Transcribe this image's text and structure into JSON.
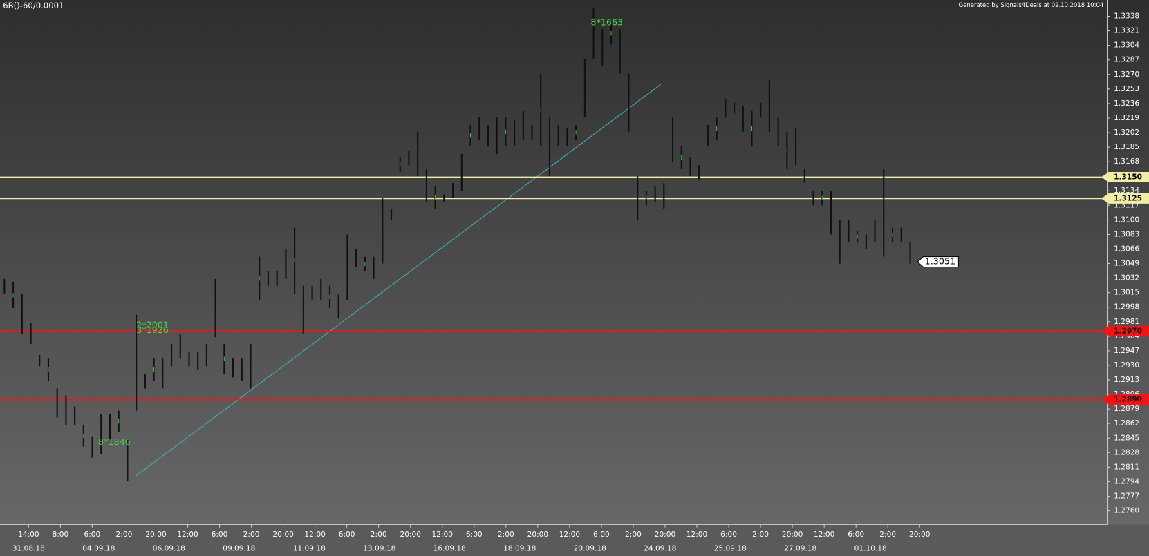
{
  "chart_data": {
    "type": "ohlc",
    "title": "6B()-60/0.0001",
    "subtitle": "Generated by Signals4Deals at 02.10.2018 10:04",
    "ylim": [
      1.2744,
      1.3357
    ],
    "yticks": [
      1.3338,
      1.3321,
      1.3304,
      1.3287,
      {
        "value": 1.327,
        "label": "1.3270"
      },
      1.3253,
      1.3236,
      1.3219,
      1.3202,
      1.3185,
      1.3168,
      1.3134,
      1.3117,
      {
        "value": 1.31,
        "label": "1.3100"
      },
      1.3083,
      1.3066,
      1.3049,
      1.3032,
      1.3015,
      1.2998,
      1.2981,
      1.2964,
      1.2947,
      {
        "value": 1.293,
        "label": "1.2930"
      },
      1.2913,
      1.2896,
      1.2879,
      1.2862,
      1.2845,
      1.2828,
      1.2811,
      1.2794,
      1.2777,
      {
        "value": 1.276,
        "label": "1.2760"
      }
    ],
    "high": [
      1.3031,
      1.3027,
      1.3014,
      1.298,
      1.2942,
      1.2938,
      1.2903,
      1.2895,
      1.2882,
      1.286,
      1.2847,
      1.2873,
      1.2873,
      1.2877,
      1.2843,
      1.2989,
      1.292,
      1.2938,
      1.2938,
      1.2955,
      1.2967,
      1.2946,
      1.2946,
      1.2955,
      1.3031,
      1.2955,
      1.2938,
      1.2938,
      1.2955,
      1.3057,
      1.304,
      1.304,
      1.3066,
      1.3091,
      1.3023,
      1.3023,
      1.3031,
      1.3023,
      1.3014,
      1.3083,
      1.3066,
      1.3057,
      1.3057,
      1.3126,
      1.3113,
      1.3173,
      1.3181,
      1.3203,
      1.316,
      1.3139,
      1.313,
      1.3143,
      1.3177,
      1.3211,
      1.322,
      1.3211,
      1.322,
      1.322,
      1.3216,
      1.3228,
      1.3211,
      1.3271,
      1.322,
      1.3211,
      1.3207,
      1.3211,
      1.3288,
      1.3348,
      1.3323,
      1.3331,
      1.3323,
      1.3271,
      1.3151,
      1.3134,
      1.3139,
      1.3143,
      1.322,
      1.3186,
      1.3173,
      1.3164,
      1.3211,
      1.322,
      1.3241,
      1.3237,
      1.3233,
      1.3228,
      1.3237,
      1.3263,
      1.322,
      1.3203,
      1.3207,
      1.316,
      1.3134,
      1.3134,
      1.3134,
      1.31,
      1.31,
      1.3087,
      1.3083,
      1.31,
      1.316,
      1.3091,
      1.3091,
      1.3074
    ],
    "low": [
      1.3014,
      1.2997,
      1.2967,
      1.2955,
      1.2929,
      1.2912,
      1.2869,
      1.286,
      1.286,
      1.2835,
      1.2822,
      1.2826,
      1.2843,
      1.2852,
      1.2795,
      1.2877,
      1.2903,
      1.2912,
      1.2903,
      1.2929,
      1.2938,
      1.2929,
      1.2925,
      1.2929,
      1.2963,
      1.292,
      1.2916,
      1.2912,
      1.2903,
      1.3006,
      1.3023,
      1.3023,
      1.3031,
      1.3014,
      1.2967,
      1.3006,
      1.3006,
      1.2997,
      1.2985,
      1.3006,
      1.3045,
      1.304,
      1.3031,
      1.3049,
      1.31,
      1.3156,
      1.3164,
      1.3151,
      1.3121,
      1.3113,
      1.3121,
      1.3126,
      1.3134,
      1.3186,
      1.3194,
      1.3186,
      1.3177,
      1.3186,
      1.3186,
      1.3194,
      1.3194,
      1.3186,
      1.3151,
      1.3186,
      1.3186,
      1.3194,
      1.322,
      1.3288,
      1.328,
      1.3305,
      1.3271,
      1.3203,
      1.31,
      1.3117,
      1.3121,
      1.3113,
      1.3168,
      1.316,
      1.3151,
      1.3147,
      1.3186,
      1.3194,
      1.322,
      1.3224,
      1.3203,
      1.3186,
      1.322,
      1.3203,
      1.3186,
      1.316,
      1.3164,
      1.3143,
      1.3117,
      1.3117,
      1.3083,
      1.3049,
      1.3074,
      1.3074,
      1.3066,
      1.3074,
      1.3057,
      1.3074,
      1.3074,
      1.3049
    ],
    "levels": {
      "values": [
        1.315,
        1.3125,
        1.297,
        1.289
      ],
      "value_labels": [
        "1.3150",
        "1.3125",
        "1.2970",
        "1.2890"
      ],
      "colors": [
        "#f2eea0",
        "#f2eea0",
        "#ff1010",
        "#ff1010"
      ]
    },
    "last_price": 1.3051,
    "annotations": [
      "8*1663",
      "8*1846",
      "2*2001",
      "3*1926"
    ],
    "time_labels": [
      "14:00",
      "8:00",
      "6:00",
      "2:00",
      "20:00",
      "12:00",
      "6:00",
      "2:00",
      "20:00",
      "12:00",
      "6:00",
      "2:00",
      "20:00",
      "12:00",
      "6:00",
      "2:00",
      "20:00",
      "12:00",
      "6:00",
      "2:00",
      "20:00",
      "12:00",
      "6:00",
      "2:00",
      "20:00",
      "12:00",
      "6:00",
      "2:00",
      "20:00"
    ],
    "date_labels": [
      "31.08.18",
      "04.09.18",
      "06.09.18",
      "09.09.18",
      "11.09.18",
      "13.09.18",
      "16.09.18",
      "18.09.18",
      "20.09.18",
      "24.09.18",
      "25.09.18",
      "27.09.18",
      "01.10.18"
    ]
  }
}
